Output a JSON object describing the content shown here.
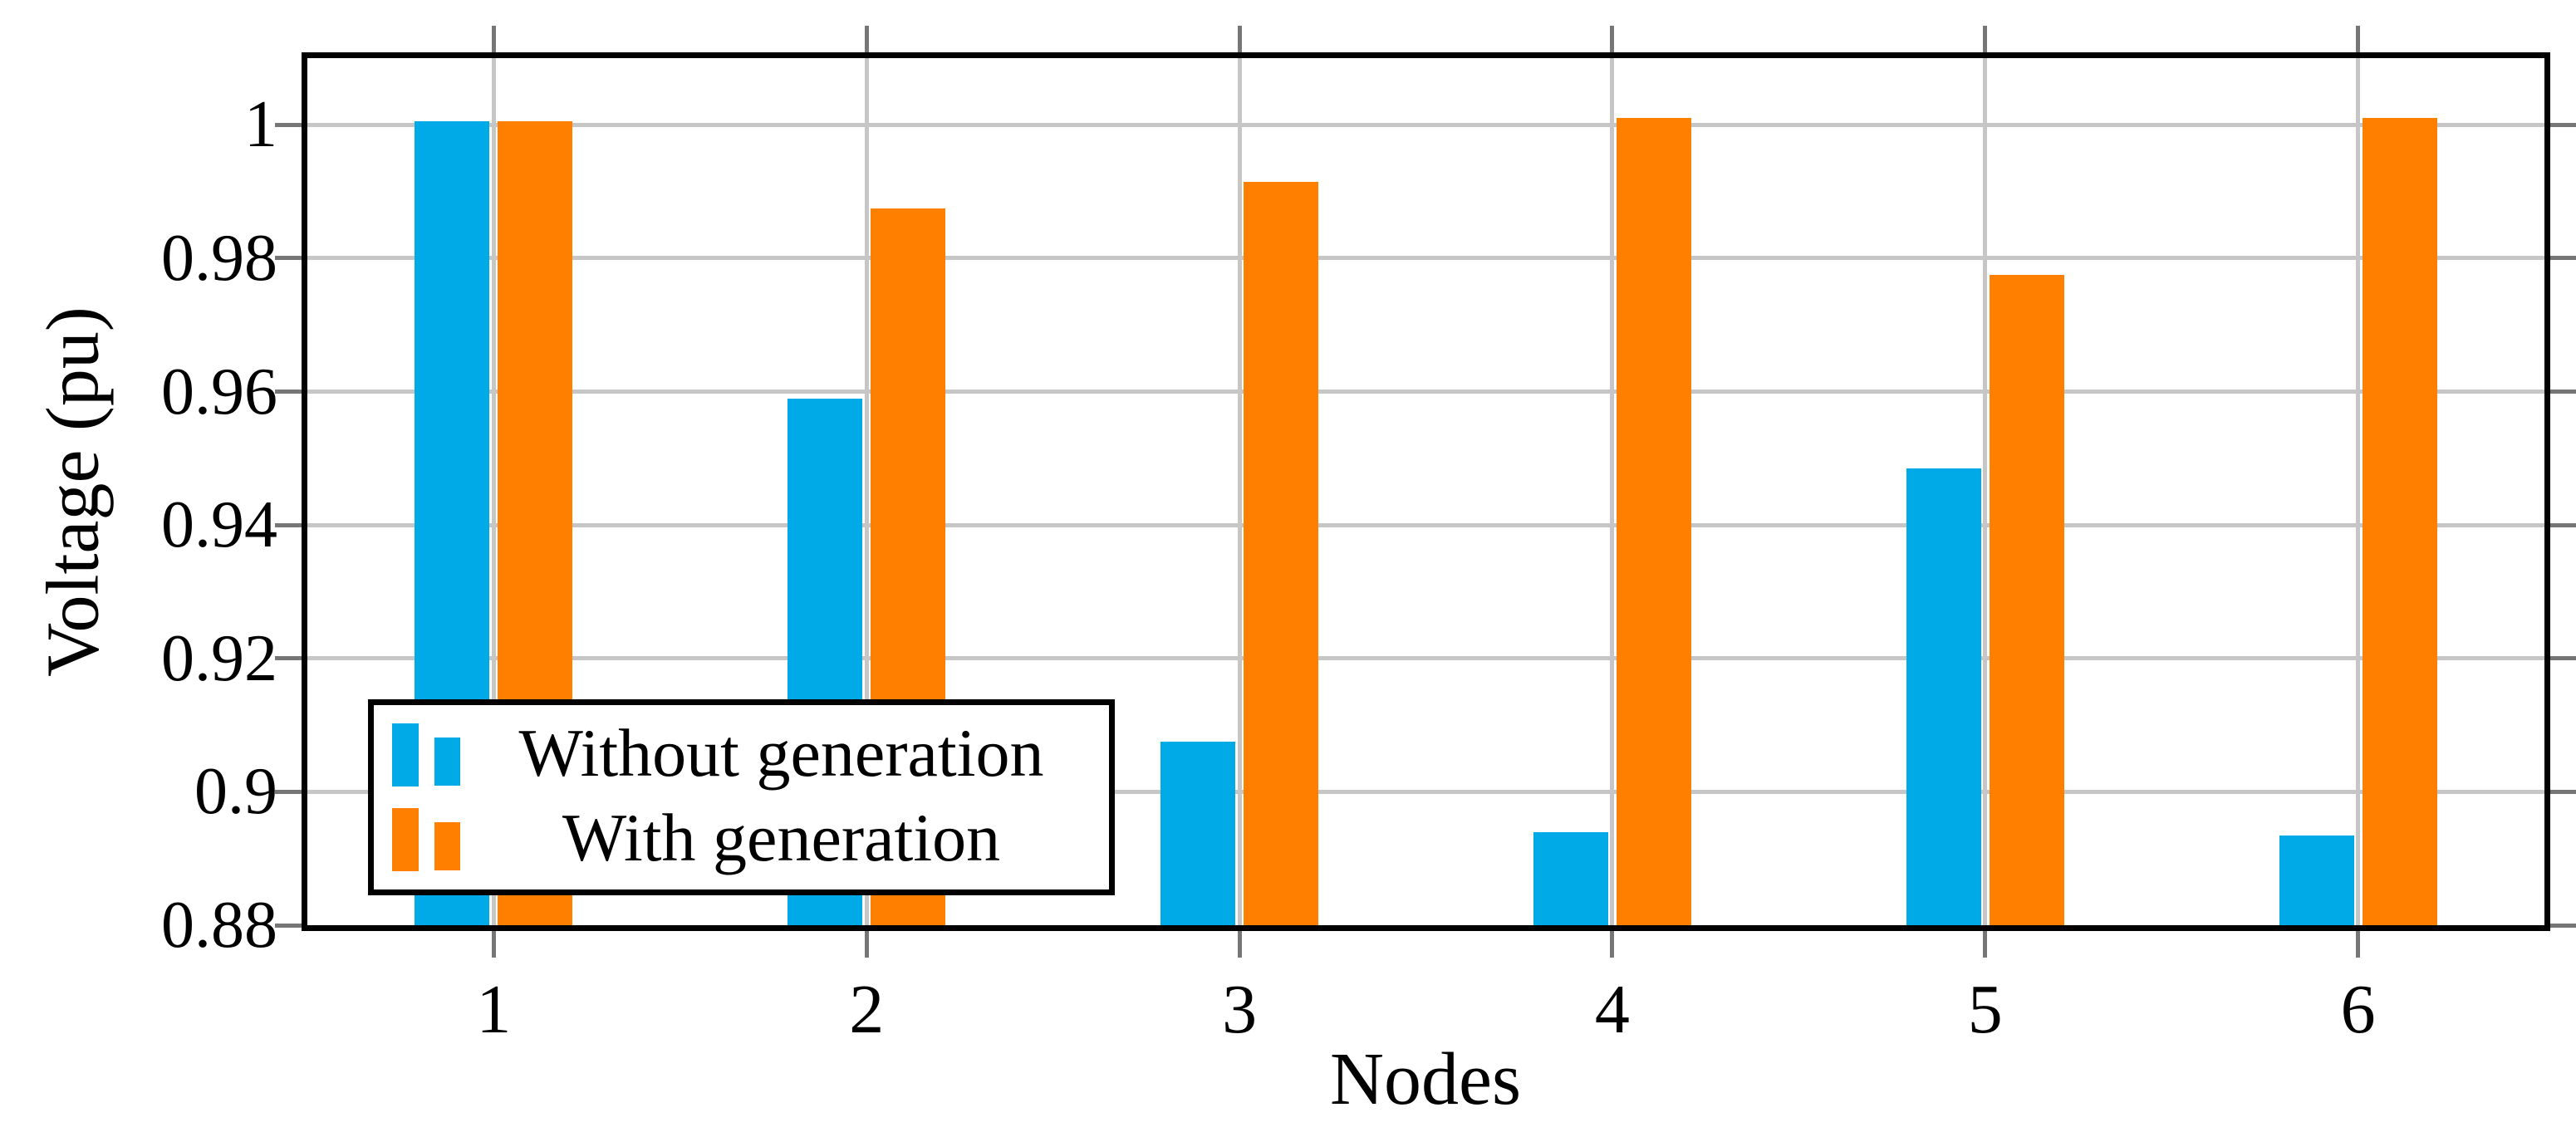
{
  "figure": {
    "background_color": "#ffffff",
    "axis_border_color": "#000000",
    "gridline_color": "#c6c6c6",
    "tick_color": "#767676"
  },
  "chart_data": {
    "type": "bar",
    "title": "",
    "xlabel": "Nodes",
    "ylabel": "Voltage (pu)",
    "categories": [
      "1",
      "2",
      "3",
      "4",
      "5",
      "6"
    ],
    "series": [
      {
        "name": "Without generation",
        "color": "#00AAE6",
        "values": [
          1.0005,
          0.959,
          0.9075,
          0.894,
          0.9485,
          0.8935
        ]
      },
      {
        "name": "With generation",
        "color": "#FF8000",
        "values": [
          1.0005,
          0.9875,
          0.9915,
          1.001,
          0.9775,
          1.001
        ]
      }
    ],
    "ylim": [
      0.88,
      1.01
    ],
    "yticks": [
      {
        "value": 1.0,
        "label": "1"
      },
      {
        "value": 0.98,
        "label": "0.98"
      },
      {
        "value": 0.96,
        "label": "0.96"
      },
      {
        "value": 0.94,
        "label": "0.94"
      },
      {
        "value": 0.92,
        "label": "0.92"
      },
      {
        "value": 0.9,
        "label": "0.9"
      },
      {
        "value": 0.88,
        "label": "0.88"
      }
    ],
    "grid": {
      "horizontal": true,
      "vertical": true
    },
    "legend": {
      "position": "south west"
    }
  }
}
